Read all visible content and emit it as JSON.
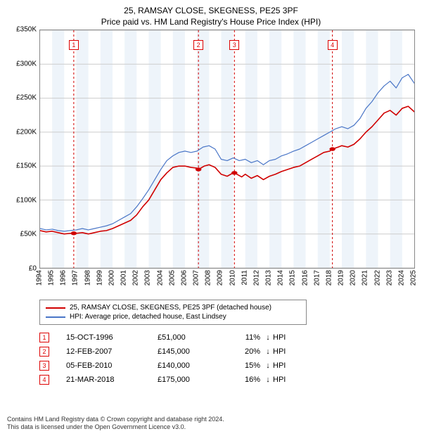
{
  "title": {
    "line1": "25, RAMSAY CLOSE, SKEGNESS, PE25 3PF",
    "line2": "Price paid vs. HM Land Registry's House Price Index (HPI)"
  },
  "chart": {
    "type": "line",
    "x_start_year": 1994,
    "x_end_year": 2025,
    "x_tick_step": 1,
    "ylim": [
      0,
      350000
    ],
    "y_ticks": [
      0,
      50000,
      100000,
      150000,
      200000,
      250000,
      300000,
      350000
    ],
    "y_tick_labels": [
      "£0",
      "£50K",
      "£100K",
      "£150K",
      "£200K",
      "£250K",
      "£300K",
      "£350K"
    ],
    "background_color": "#ffffff",
    "plot_border_color": "#888888",
    "grid_color": "#cccccc",
    "alt_band_color": "#eef4fa",
    "marker_vline_color": "#d00000",
    "marker_vline_dash": "3,3",
    "label_fontsize": 10,
    "title_fontsize": 12,
    "marker_radius": 4,
    "series": [
      {
        "id": "property",
        "label": "25, RAMSAY CLOSE, SKEGNESS, PE25 3PF (detached house)",
        "color": "#d00000",
        "line_width": 1.6,
        "data": [
          [
            1994.0,
            55000
          ],
          [
            1994.5,
            53000
          ],
          [
            1995.0,
            54000
          ],
          [
            1995.5,
            52000
          ],
          [
            1996.0,
            50000
          ],
          [
            1996.5,
            51000
          ],
          [
            1997.0,
            51000
          ],
          [
            1997.5,
            52000
          ],
          [
            1998.0,
            50000
          ],
          [
            1998.5,
            52000
          ],
          [
            1999.0,
            54000
          ],
          [
            1999.5,
            55000
          ],
          [
            2000.0,
            58000
          ],
          [
            2000.5,
            62000
          ],
          [
            2001.0,
            66000
          ],
          [
            2001.5,
            70000
          ],
          [
            2002.0,
            78000
          ],
          [
            2002.5,
            90000
          ],
          [
            2003.0,
            100000
          ],
          [
            2003.5,
            115000
          ],
          [
            2004.0,
            130000
          ],
          [
            2004.5,
            140000
          ],
          [
            2005.0,
            148000
          ],
          [
            2005.5,
            150000
          ],
          [
            2006.0,
            150000
          ],
          [
            2006.5,
            148000
          ],
          [
            2007.0,
            147000
          ],
          [
            2007.12,
            145000
          ],
          [
            2007.6,
            150000
          ],
          [
            2008.0,
            152000
          ],
          [
            2008.5,
            148000
          ],
          [
            2009.0,
            138000
          ],
          [
            2009.5,
            135000
          ],
          [
            2010.0,
            140000
          ],
          [
            2010.1,
            140000
          ],
          [
            2010.7,
            134000
          ],
          [
            2011.0,
            138000
          ],
          [
            2011.5,
            132000
          ],
          [
            2012.0,
            136000
          ],
          [
            2012.5,
            130000
          ],
          [
            2013.0,
            135000
          ],
          [
            2013.5,
            138000
          ],
          [
            2014.0,
            142000
          ],
          [
            2014.5,
            145000
          ],
          [
            2015.0,
            148000
          ],
          [
            2015.5,
            150000
          ],
          [
            2016.0,
            155000
          ],
          [
            2016.5,
            160000
          ],
          [
            2017.0,
            165000
          ],
          [
            2017.5,
            170000
          ],
          [
            2018.0,
            172000
          ],
          [
            2018.22,
            175000
          ],
          [
            2018.7,
            178000
          ],
          [
            2019.0,
            180000
          ],
          [
            2019.5,
            178000
          ],
          [
            2020.0,
            182000
          ],
          [
            2020.5,
            190000
          ],
          [
            2021.0,
            200000
          ],
          [
            2021.5,
            208000
          ],
          [
            2022.0,
            218000
          ],
          [
            2022.5,
            228000
          ],
          [
            2023.0,
            232000
          ],
          [
            2023.5,
            225000
          ],
          [
            2024.0,
            235000
          ],
          [
            2024.5,
            238000
          ],
          [
            2025.0,
            230000
          ],
          [
            2025.3,
            232000
          ]
        ]
      },
      {
        "id": "hpi",
        "label": "HPI: Average price, detached house, East Lindsey",
        "color": "#4a76c7",
        "line_width": 1.2,
        "data": [
          [
            1994.0,
            58000
          ],
          [
            1994.5,
            56000
          ],
          [
            1995.0,
            57000
          ],
          [
            1995.5,
            55000
          ],
          [
            1996.0,
            54000
          ],
          [
            1996.5,
            55000
          ],
          [
            1997.0,
            56000
          ],
          [
            1997.5,
            58000
          ],
          [
            1998.0,
            56000
          ],
          [
            1998.5,
            58000
          ],
          [
            1999.0,
            60000
          ],
          [
            1999.5,
            62000
          ],
          [
            2000.0,
            65000
          ],
          [
            2000.5,
            70000
          ],
          [
            2001.0,
            75000
          ],
          [
            2001.5,
            80000
          ],
          [
            2002.0,
            90000
          ],
          [
            2002.5,
            102000
          ],
          [
            2003.0,
            115000
          ],
          [
            2003.5,
            130000
          ],
          [
            2004.0,
            145000
          ],
          [
            2004.5,
            158000
          ],
          [
            2005.0,
            165000
          ],
          [
            2005.5,
            170000
          ],
          [
            2006.0,
            172000
          ],
          [
            2006.5,
            170000
          ],
          [
            2007.0,
            172000
          ],
          [
            2007.5,
            178000
          ],
          [
            2008.0,
            180000
          ],
          [
            2008.5,
            175000
          ],
          [
            2009.0,
            160000
          ],
          [
            2009.5,
            158000
          ],
          [
            2010.0,
            162000
          ],
          [
            2010.5,
            158000
          ],
          [
            2011.0,
            160000
          ],
          [
            2011.5,
            155000
          ],
          [
            2012.0,
            158000
          ],
          [
            2012.5,
            152000
          ],
          [
            2013.0,
            158000
          ],
          [
            2013.5,
            160000
          ],
          [
            2014.0,
            165000
          ],
          [
            2014.5,
            168000
          ],
          [
            2015.0,
            172000
          ],
          [
            2015.5,
            175000
          ],
          [
            2016.0,
            180000
          ],
          [
            2016.5,
            185000
          ],
          [
            2017.0,
            190000
          ],
          [
            2017.5,
            195000
          ],
          [
            2018.0,
            200000
          ],
          [
            2018.5,
            205000
          ],
          [
            2019.0,
            208000
          ],
          [
            2019.5,
            205000
          ],
          [
            2020.0,
            210000
          ],
          [
            2020.5,
            220000
          ],
          [
            2021.0,
            235000
          ],
          [
            2021.5,
            245000
          ],
          [
            2022.0,
            258000
          ],
          [
            2022.5,
            268000
          ],
          [
            2023.0,
            275000
          ],
          [
            2023.5,
            265000
          ],
          [
            2024.0,
            280000
          ],
          [
            2024.5,
            285000
          ],
          [
            2025.0,
            272000
          ],
          [
            2025.3,
            275000
          ]
        ]
      }
    ],
    "sale_markers": [
      {
        "n": 1,
        "year": 1996.79,
        "price": 51000
      },
      {
        "n": 2,
        "year": 2007.12,
        "price": 145000
      },
      {
        "n": 3,
        "year": 2010.1,
        "price": 140000
      },
      {
        "n": 4,
        "year": 2018.22,
        "price": 175000
      }
    ]
  },
  "legend": {
    "items": [
      {
        "color": "#d00000",
        "label": "25, RAMSAY CLOSE, SKEGNESS, PE25 3PF (detached house)"
      },
      {
        "color": "#4a76c7",
        "label": "HPI: Average price, detached house, East Lindsey"
      }
    ]
  },
  "sales_table": {
    "suffix": "HPI",
    "rows": [
      {
        "n": "1",
        "date": "15-OCT-1996",
        "price": "£51,000",
        "delta": "11%",
        "arrow": "↓"
      },
      {
        "n": "2",
        "date": "12-FEB-2007",
        "price": "£145,000",
        "delta": "20%",
        "arrow": "↓"
      },
      {
        "n": "3",
        "date": "05-FEB-2010",
        "price": "£140,000",
        "delta": "15%",
        "arrow": "↓"
      },
      {
        "n": "4",
        "date": "21-MAR-2018",
        "price": "£175,000",
        "delta": "16%",
        "arrow": "↓"
      }
    ]
  },
  "footer": {
    "line1": "Contains HM Land Registry data © Crown copyright and database right 2024.",
    "line2": "This data is licensed under the Open Government Licence v3.0."
  }
}
